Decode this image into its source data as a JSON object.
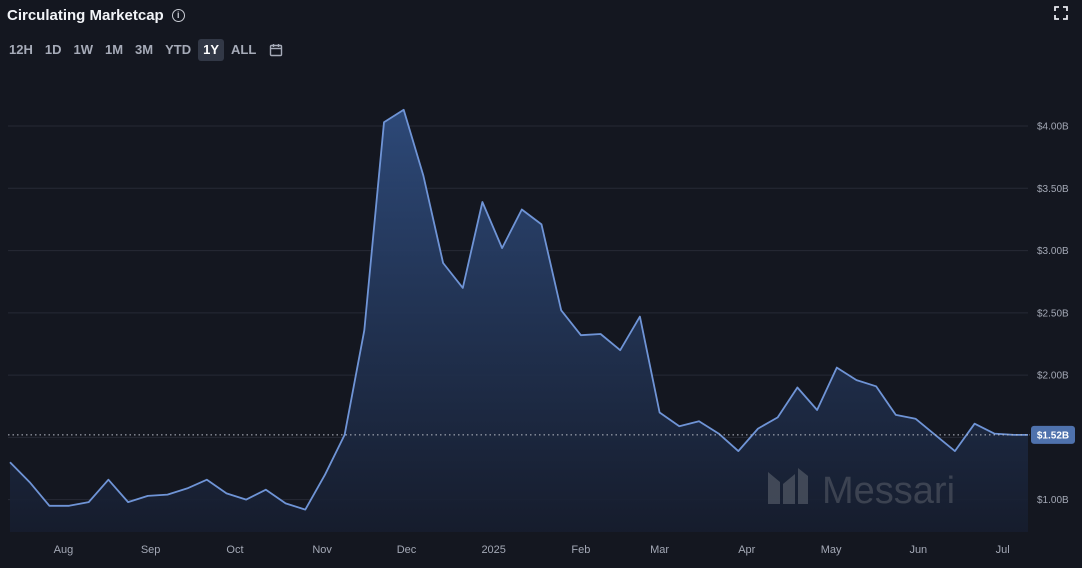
{
  "header": {
    "title": "Circulating Marketcap",
    "ranges": [
      {
        "label": "12H",
        "active": false
      },
      {
        "label": "1D",
        "active": false
      },
      {
        "label": "1W",
        "active": false
      },
      {
        "label": "1M",
        "active": false
      },
      {
        "label": "3M",
        "active": false
      },
      {
        "label": "YTD",
        "active": false
      },
      {
        "label": "1Y",
        "active": true
      },
      {
        "label": "ALL",
        "active": false
      }
    ],
    "icons": [
      "info-icon",
      "calendar-icon",
      "expand-icon"
    ]
  },
  "watermark": "Messari",
  "colors": {
    "background": "#141720",
    "line": "#6f94d6",
    "fill_top": "#2e4b7c",
    "fill_bottom": "#161d2e",
    "grid": "#262a35",
    "current_badge": "#4f72ad"
  },
  "chart_data": {
    "type": "area",
    "title": "Circulating Marketcap",
    "unit": "USD billions",
    "x_ticks": [
      "Aug",
      "Sep",
      "Oct",
      "Nov",
      "Dec",
      "2025",
      "Feb",
      "Mar",
      "Apr",
      "May",
      "Jun",
      "Jul"
    ],
    "tick_dates": [
      "2024-08-01",
      "2024-09-01",
      "2024-10-01",
      "2024-11-01",
      "2024-12-01",
      "2025-01-01",
      "2025-02-01",
      "2025-03-01",
      "2025-04-01",
      "2025-05-01",
      "2025-06-01",
      "2025-07-01"
    ],
    "y_ticks": [
      "$1.00B",
      "$1.50B",
      "$2.00B",
      "$2.50B",
      "$3.00B",
      "$3.50B",
      "$4.00B"
    ],
    "y_tick_values": [
      1.0,
      1.5,
      2.0,
      2.5,
      3.0,
      3.5,
      4.0
    ],
    "ylim": [
      0.74,
      4.45
    ],
    "grid": true,
    "current_value": 1.52,
    "current_label": "$1.52B",
    "series": [
      {
        "name": "",
        "points": [
          [
            "2024-07-13",
            1.3
          ],
          [
            "2024-07-20",
            1.14
          ],
          [
            "2024-07-27",
            0.95
          ],
          [
            "2024-08-03",
            0.95
          ],
          [
            "2024-08-10",
            0.98
          ],
          [
            "2024-08-17",
            1.16
          ],
          [
            "2024-08-24",
            0.98
          ],
          [
            "2024-08-31",
            1.03
          ],
          [
            "2024-09-07",
            1.04
          ],
          [
            "2024-09-14",
            1.09
          ],
          [
            "2024-09-21",
            1.16
          ],
          [
            "2024-09-28",
            1.05
          ],
          [
            "2024-10-05",
            1.0
          ],
          [
            "2024-10-12",
            1.08
          ],
          [
            "2024-10-19",
            0.97
          ],
          [
            "2024-10-26",
            0.92
          ],
          [
            "2024-11-02",
            1.2
          ],
          [
            "2024-11-09",
            1.52
          ],
          [
            "2024-11-16",
            2.36
          ],
          [
            "2024-11-23",
            4.03
          ],
          [
            "2024-11-30",
            4.13
          ],
          [
            "2024-12-07",
            3.6
          ],
          [
            "2024-12-14",
            2.9
          ],
          [
            "2024-12-21",
            2.7
          ],
          [
            "2024-12-28",
            3.39
          ],
          [
            "2025-01-04",
            3.02
          ],
          [
            "2025-01-11",
            3.33
          ],
          [
            "2025-01-18",
            3.21
          ],
          [
            "2025-01-25",
            2.52
          ],
          [
            "2025-02-01",
            2.32
          ],
          [
            "2025-02-08",
            2.33
          ],
          [
            "2025-02-15",
            2.2
          ],
          [
            "2025-02-22",
            2.47
          ],
          [
            "2025-03-01",
            1.7
          ],
          [
            "2025-03-08",
            1.59
          ],
          [
            "2025-03-15",
            1.63
          ],
          [
            "2025-03-22",
            1.53
          ],
          [
            "2025-03-29",
            1.39
          ],
          [
            "2025-04-05",
            1.57
          ],
          [
            "2025-04-12",
            1.66
          ],
          [
            "2025-04-19",
            1.9
          ],
          [
            "2025-04-26",
            1.72
          ],
          [
            "2025-05-03",
            2.06
          ],
          [
            "2025-05-10",
            1.96
          ],
          [
            "2025-05-17",
            1.91
          ],
          [
            "2025-05-24",
            1.68
          ],
          [
            "2025-05-31",
            1.65
          ],
          [
            "2025-06-07",
            1.52
          ],
          [
            "2025-06-14",
            1.39
          ],
          [
            "2025-06-21",
            1.61
          ],
          [
            "2025-06-28",
            1.53
          ],
          [
            "2025-07-05",
            1.52
          ],
          [
            "2025-07-10",
            1.52
          ]
        ]
      }
    ]
  }
}
